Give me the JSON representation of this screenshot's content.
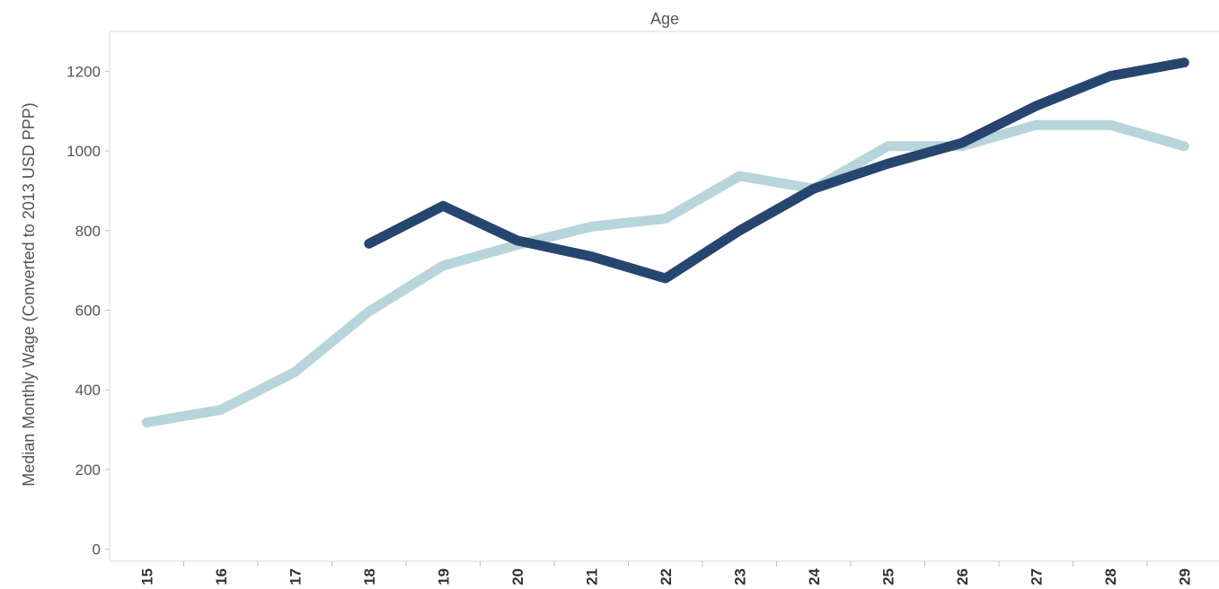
{
  "chart_data": {
    "type": "line",
    "title": "",
    "xlabel": "Age",
    "ylabel": "Median Monthly Wage (Converted to 2013 USD PPP)",
    "x": [
      15,
      16,
      17,
      18,
      19,
      20,
      21,
      22,
      23,
      24,
      25,
      26,
      27,
      28,
      29
    ],
    "x_tick_labels": [
      "15",
      "16",
      "17",
      "18",
      "19",
      "20",
      "21",
      "22",
      "23",
      "24",
      "25",
      "26",
      "27",
      "28",
      "29"
    ],
    "yticks": [
      0,
      200,
      400,
      600,
      800,
      1000,
      1200
    ],
    "y_tick_labels": [
      "0",
      "200",
      "400",
      "600",
      "800",
      "1000",
      "1200"
    ],
    "ylim": [
      -30,
      1300
    ],
    "grid": false,
    "legend": "none",
    "series": [
      {
        "color": "#27466f",
        "values": [
          null,
          null,
          null,
          767,
          862,
          775,
          735,
          680,
          800,
          905,
          968,
          1020,
          1113,
          1188,
          1222
        ]
      },
      {
        "color": "#b7d5da",
        "values": [
          318,
          350,
          445,
          597,
          712,
          764,
          810,
          830,
          937,
          905,
          1012,
          1012,
          1065,
          1065,
          1012
        ]
      }
    ]
  }
}
